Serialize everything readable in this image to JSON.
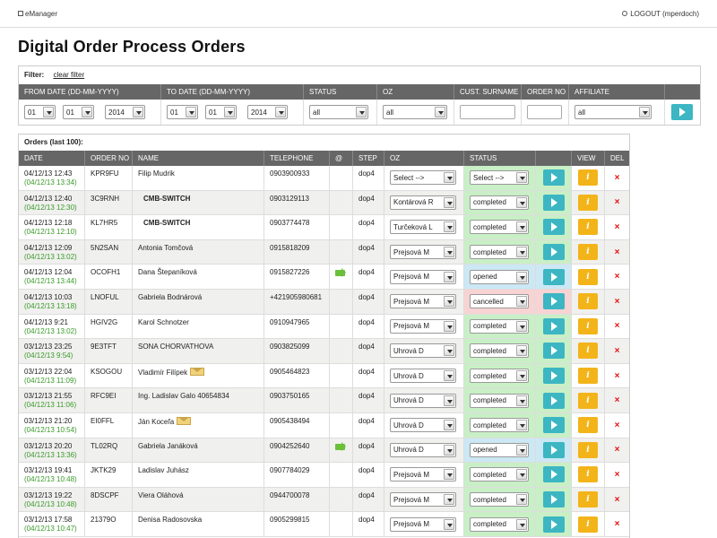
{
  "app": {
    "name": "eManager",
    "logout": "LOGOUT (mperdoch)"
  },
  "page": {
    "title": "Digital Order Process Orders"
  },
  "filter": {
    "label": "Filter:",
    "clear": "clear filter",
    "columns": [
      "FROM DATE (DD-MM-YYYY)",
      "TO DATE (DD-MM-YYYY)",
      "STATUS",
      "OZ",
      "CUST. SURNAME",
      "ORDER NO",
      "AFFILIATE"
    ],
    "from": {
      "day": "01",
      "month": "01",
      "year": "2014"
    },
    "to": {
      "day": "01",
      "month": "01",
      "year": "2014"
    },
    "status": "all",
    "oz": "all",
    "surname": "",
    "order_no": "",
    "affiliate": "all"
  },
  "orders": {
    "title": "Orders (last 100):",
    "columns": [
      "DATE",
      "ORDER NO",
      "NAME",
      "TELEPHONE",
      "@",
      "STEP",
      "OZ",
      "STATUS",
      "",
      "VIEW",
      "DEL"
    ],
    "rows": [
      {
        "date": "04/12/13 12:43",
        "date2": "(04/12/13 13:34)",
        "order": "KPR9FU",
        "name": "Filip Mudrik",
        "bold": false,
        "env": false,
        "tel": "0903900933",
        "mail": false,
        "step": "dop4",
        "oz": "Select -->",
        "status": "Select -->",
        "state": "green"
      },
      {
        "date": "04/12/13 12:40",
        "date2": "(04/12/13 12:30)",
        "order": "3C9RNH",
        "name": "CMB-SWITCH",
        "bold": true,
        "env": false,
        "tel": "0903129113",
        "mail": false,
        "step": "dop4",
        "oz": "Kontárová R",
        "status": "completed",
        "state": "green"
      },
      {
        "date": "04/12/13 12:18",
        "date2": "(04/12/13 12:10)",
        "order": "KL7HR5",
        "name": "CMB-SWITCH",
        "bold": true,
        "env": false,
        "tel": "0903774478",
        "mail": false,
        "step": "dop4",
        "oz": "Turčeková L",
        "status": "completed",
        "state": "green"
      },
      {
        "date": "04/12/13 12:09",
        "date2": "(04/12/13 13:02)",
        "order": "5N2SAN",
        "name": "Antonia Tomčová",
        "bold": false,
        "env": false,
        "tel": "0915818209",
        "mail": false,
        "step": "dop4",
        "oz": "Prejsová M",
        "status": "completed",
        "state": "green"
      },
      {
        "date": "04/12/13 12:04",
        "date2": "(04/12/13 13:44)",
        "order": "OCOFH1",
        "name": "Dana Štepaníková",
        "bold": false,
        "env": false,
        "tel": "0915827226",
        "mail": true,
        "step": "dop4",
        "oz": "Prejsová M",
        "status": "opened",
        "state": "blue"
      },
      {
        "date": "04/12/13 10:03",
        "date2": "(04/12/13 13:18)",
        "order": "LNOFUL",
        "name": "Gabriela Bodnárová",
        "bold": false,
        "env": false,
        "tel": "+421905980681",
        "mail": false,
        "step": "dop4",
        "oz": "Prejsová M",
        "status": "cancelled",
        "state": "red"
      },
      {
        "date": "04/12/13 9:21",
        "date2": "(04/12/13 13:02)",
        "order": "HGIV2G",
        "name": "Karol Schnotzer",
        "bold": false,
        "env": false,
        "tel": "0910947965",
        "mail": false,
        "step": "dop4",
        "oz": "Prejsová M",
        "status": "completed",
        "state": "green"
      },
      {
        "date": "03/12/13 23:25",
        "date2": "(04/12/13 9:54)",
        "order": "9E3TFT",
        "name": "SONA CHORVATHOVA",
        "bold": false,
        "env": false,
        "tel": "0903825099",
        "mail": false,
        "step": "dop4",
        "oz": "Uhrová D",
        "status": "completed",
        "state": "green"
      },
      {
        "date": "03/12/13 22:04",
        "date2": "(04/12/13 11:09)",
        "order": "KSOGOU",
        "name": "Vladimír Filípek",
        "bold": false,
        "env": true,
        "tel": "0905464823",
        "mail": false,
        "step": "dop4",
        "oz": "Uhrová D",
        "status": "completed",
        "state": "green"
      },
      {
        "date": "03/12/13 21:55",
        "date2": "(04/12/13 11:06)",
        "order": "RFC9EI",
        "name": "Ing. Ladislav Galo 40654834",
        "bold": false,
        "env": false,
        "tel": "0903750165",
        "mail": false,
        "step": "dop4",
        "oz": "Uhrová D",
        "status": "completed",
        "state": "green"
      },
      {
        "date": "03/12/13 21:20",
        "date2": "(04/12/13 10:54)",
        "order": "EI0FFL",
        "name": "Ján Koceľa",
        "bold": false,
        "env": true,
        "tel": "0905438494",
        "mail": false,
        "step": "dop4",
        "oz": "Uhrová D",
        "status": "completed",
        "state": "green"
      },
      {
        "date": "03/12/13 20:20",
        "date2": "(04/12/13 13:36)",
        "order": "TL02RQ",
        "name": "Gabriela Janáková",
        "bold": false,
        "env": false,
        "tel": "0904252640",
        "mail": true,
        "step": "dop4",
        "oz": "Uhrová D",
        "status": "opened",
        "state": "blue"
      },
      {
        "date": "03/12/13 19:41",
        "date2": "(04/12/13 10:48)",
        "order": "JKTK29",
        "name": "Ladislav Juhász",
        "bold": false,
        "env": false,
        "tel": "0907784029",
        "mail": false,
        "step": "dop4",
        "oz": "Prejsová M",
        "status": "completed",
        "state": "green"
      },
      {
        "date": "03/12/13 19:22",
        "date2": "(04/12/13 10:48)",
        "order": "8DSCPF",
        "name": "Viera Oláhová",
        "bold": false,
        "env": false,
        "tel": "0944700078",
        "mail": false,
        "step": "dop4",
        "oz": "Prejsová M",
        "status": "completed",
        "state": "green"
      },
      {
        "date": "03/12/13 17:58",
        "date2": "(04/12/13 10:47)",
        "order": "21379O",
        "name": "Denisa Radosovska",
        "bold": false,
        "env": false,
        "tel": "0905299815",
        "mail": false,
        "step": "dop4",
        "oz": "Prejsová M",
        "status": "completed",
        "state": "green"
      }
    ]
  },
  "icons": {
    "play": "play-icon",
    "info": "info-icon",
    "delete": "delete-icon",
    "mail": "mail-forward-icon",
    "envelope": "envelope-icon"
  },
  "colors": {
    "accent": "#3cb6c2",
    "info": "#f3b41a",
    "header": "#666666",
    "green_state": "#c9efc6",
    "blue_state": "#cbe8f4",
    "red_state": "#f8d3d3",
    "date2": "#3a9a2a",
    "delete": "#dd1111"
  }
}
